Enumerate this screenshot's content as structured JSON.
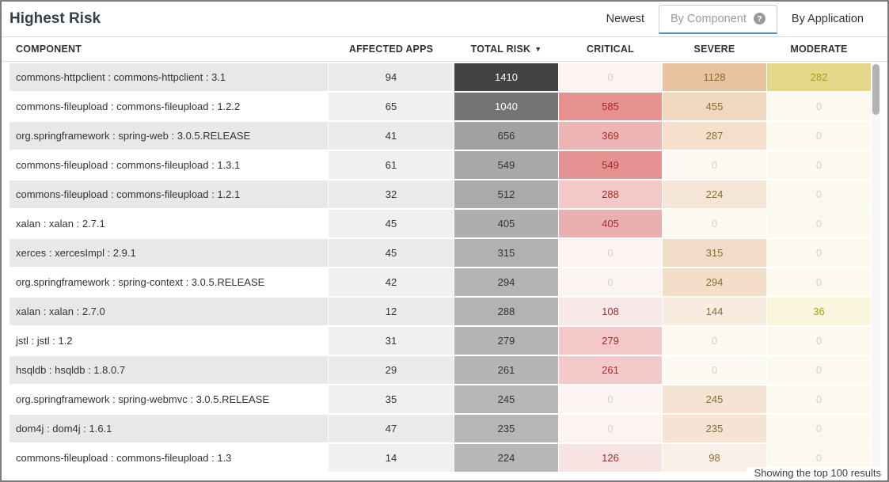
{
  "title": "Highest Risk",
  "tabs": [
    {
      "label": "Newest",
      "active": false
    },
    {
      "label": "By Component",
      "active": true,
      "info_icon": "?"
    },
    {
      "label": "By Application",
      "active": false
    }
  ],
  "table": {
    "columns": [
      "COMPONENT",
      "AFFECTED APPS",
      "TOTAL RISK",
      "CRITICAL",
      "SEVERE",
      "MODERATE"
    ],
    "sorted_column": "TOTAL RISK",
    "sort_indicator": "▼",
    "rows": [
      {
        "component": "commons-httpclient : commons-httpclient : 3.1",
        "affected_apps": 94,
        "total_risk": 1410,
        "total_risk_bg": "#434343",
        "total_risk_fg": "#ffffff",
        "critical": 0,
        "critical_bg": "#fbf4f3",
        "severe": 1128,
        "severe_bg": "#e9c29f",
        "moderate": 282,
        "moderate_bg": "#e3d88a"
      },
      {
        "component": "commons-fileupload : commons-fileupload : 1.2.2",
        "affected_apps": 65,
        "total_risk": 1040,
        "total_risk_bg": "#747474",
        "total_risk_fg": "#ffffff",
        "critical": 585,
        "critical_bg": "#e69090",
        "severe": 455,
        "severe_bg": "#f0d7bf",
        "moderate": 0,
        "moderate_bg": "#fcf9ee"
      },
      {
        "component": "org.springframework : spring-web : 3.0.5.RELEASE",
        "affected_apps": 41,
        "total_risk": 656,
        "total_risk_bg": "#a2a2a2",
        "total_risk_fg": "#333333",
        "critical": 369,
        "critical_bg": "#eeb4b4",
        "severe": 287,
        "severe_bg": "#f3dfca",
        "moderate": 0,
        "moderate_bg": "#fcf9ee"
      },
      {
        "component": "commons-fileupload : commons-fileupload : 1.3.1",
        "affected_apps": 61,
        "total_risk": 549,
        "total_risk_bg": "#a8a8a8",
        "total_risk_fg": "#333333",
        "critical": 549,
        "critical_bg": "#e59292",
        "severe": 0,
        "severe_bg": "#fcf8f2",
        "moderate": 0,
        "moderate_bg": "#fcf9ee"
      },
      {
        "component": "commons-fileupload : commons-fileupload : 1.2.1",
        "affected_apps": 32,
        "total_risk": 512,
        "total_risk_bg": "#aaaaaa",
        "total_risk_fg": "#333333",
        "critical": 288,
        "critical_bg": "#f2c9c9",
        "severe": 224,
        "severe_bg": "#f6e6d7",
        "moderate": 0,
        "moderate_bg": "#fcf9ee"
      },
      {
        "component": "xalan : xalan : 2.7.1",
        "affected_apps": 45,
        "total_risk": 405,
        "total_risk_bg": "#aeaeae",
        "total_risk_fg": "#333333",
        "critical": 405,
        "critical_bg": "#eab0b0",
        "severe": 0,
        "severe_bg": "#fcf8f2",
        "moderate": 0,
        "moderate_bg": "#fcf9ee"
      },
      {
        "component": "xerces : xercesImpl : 2.9.1",
        "affected_apps": 45,
        "total_risk": 315,
        "total_risk_bg": "#b1b1b1",
        "total_risk_fg": "#333333",
        "critical": 0,
        "critical_bg": "#fbf4f3",
        "severe": 315,
        "severe_bg": "#f3dcc7",
        "moderate": 0,
        "moderate_bg": "#fcf9ee"
      },
      {
        "component": "org.springframework : spring-context : 3.0.5.RELEASE",
        "affected_apps": 42,
        "total_risk": 294,
        "total_risk_bg": "#b3b3b3",
        "total_risk_fg": "#333333",
        "critical": 0,
        "critical_bg": "#fbf4f3",
        "severe": 294,
        "severe_bg": "#f4deca",
        "moderate": 0,
        "moderate_bg": "#fcf9ee"
      },
      {
        "component": "xalan : xalan : 2.7.0",
        "affected_apps": 12,
        "total_risk": 288,
        "total_risk_bg": "#b3b3b3",
        "total_risk_fg": "#333333",
        "critical": 108,
        "critical_bg": "#f9e8e8",
        "severe": 144,
        "severe_bg": "#f8ece1",
        "moderate": 36,
        "moderate_bg": "#faf5dd"
      },
      {
        "component": "jstl : jstl : 1.2",
        "affected_apps": 31,
        "total_risk": 279,
        "total_risk_bg": "#b4b4b4",
        "total_risk_fg": "#333333",
        "critical": 279,
        "critical_bg": "#f2c8c8",
        "severe": 0,
        "severe_bg": "#fcf8f2",
        "moderate": 0,
        "moderate_bg": "#fcf9ee"
      },
      {
        "component": "hsqldb : hsqldb : 1.8.0.7",
        "affected_apps": 29,
        "total_risk": 261,
        "total_risk_bg": "#b5b5b5",
        "total_risk_fg": "#333333",
        "critical": 261,
        "critical_bg": "#f2caca",
        "severe": 0,
        "severe_bg": "#fcf8f2",
        "moderate": 0,
        "moderate_bg": "#fcf9ee"
      },
      {
        "component": "org.springframework : spring-webmvc : 3.0.5.RELEASE",
        "affected_apps": 35,
        "total_risk": 245,
        "total_risk_bg": "#b6b6b6",
        "total_risk_fg": "#333333",
        "critical": 0,
        "critical_bg": "#fbf4f3",
        "severe": 245,
        "severe_bg": "#f5e3d3",
        "moderate": 0,
        "moderate_bg": "#fcf9ee"
      },
      {
        "component": "dom4j : dom4j : 1.6.1",
        "affected_apps": 47,
        "total_risk": 235,
        "total_risk_bg": "#b6b6b6",
        "total_risk_fg": "#333333",
        "critical": 0,
        "critical_bg": "#fbf4f3",
        "severe": 235,
        "severe_bg": "#f5e4d4",
        "moderate": 0,
        "moderate_bg": "#fcf9ee"
      },
      {
        "component": "commons-fileupload : commons-fileupload : 1.3",
        "affected_apps": 14,
        "total_risk": 224,
        "total_risk_bg": "#b7b7b7",
        "total_risk_fg": "#333333",
        "critical": 126,
        "critical_bg": "#f8e3e3",
        "severe": 98,
        "severe_bg": "#f9efe6",
        "moderate": 0,
        "moderate_bg": "#fcf9ee"
      }
    ]
  },
  "footer": {
    "text": "Showing the top 100 results"
  },
  "colors": {
    "accent_blue": "#4a90d9",
    "window_border": "#7c7c7c",
    "title_text": "#32404e",
    "critical_text": "#a92a2a",
    "severe_text": "#8a6d2a",
    "moderate_text": "#a8a011",
    "zero_text": "#d5d1ca",
    "component_bg_odd": "#e8e8e8",
    "component_bg_even": "#ffffff",
    "affected_bg_odd": "#ebebeb",
    "affected_bg_even": "#f0f0f0"
  }
}
